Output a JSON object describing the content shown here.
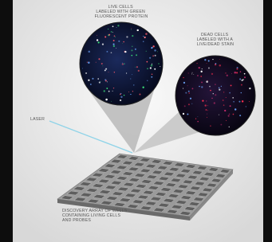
{
  "labels": {
    "live_cells": [
      "LIVE CELLS",
      "LABELED WITH GREEN",
      "FLUORESCENT PROTEIN"
    ],
    "dead_cells": [
      "DEAD CELLS",
      "LABELED WITH A",
      "LIVE/DEAD STAIN"
    ],
    "laser": [
      "LASER"
    ],
    "array": [
      "DISCOVERY ARRAY OF WELLS",
      "CONTAINING LIVING CELLS",
      "AND PROBES"
    ]
  }
}
